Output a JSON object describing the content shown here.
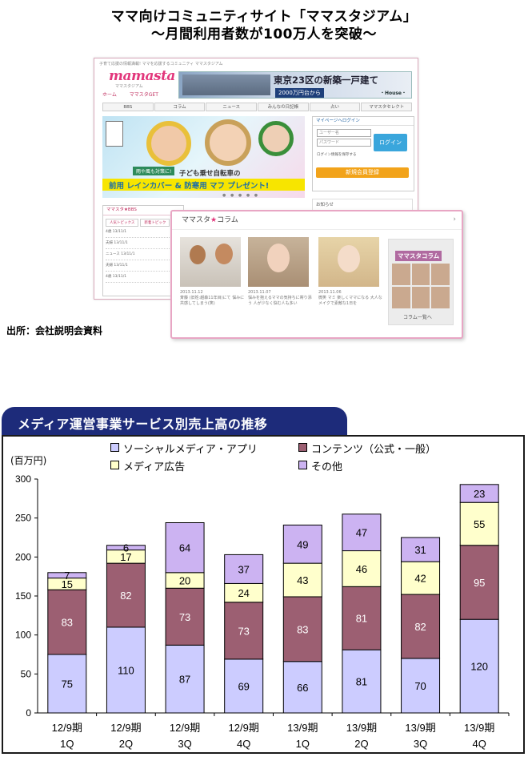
{
  "header": {
    "title_line1": "ママ向けコミュニティサイト「ママスタジアム」",
    "title_line2": "〜月間利用者数が100万人を突破〜"
  },
  "site": {
    "tagline": "子育て応援の情報満載! ママを応援するコミュニティ ママスタジアム",
    "logo": "mamasta",
    "logo_sub": "ママスタジアム",
    "banner_text": "東京23区の新築一戸建て",
    "banner_price": "2000万円台から",
    "banner_brand": "・House・",
    "nav": [
      "ホーム",
      "ママスタGET"
    ],
    "tabs": [
      "BBS",
      "コラム",
      "ニュース",
      "みんなの日記帳",
      "占い",
      "ママスタセレクト"
    ],
    "hero_tag": "雨や風も対策に!",
    "hero_sub": "子ども乗せ自転車の",
    "hero_main": "前用 レインカバー & 防寒用 マフ プレゼント!",
    "login_head": "マイページへログイン",
    "login_id_placeholder": "ユーザー名",
    "login_pw_placeholder": "パスワード",
    "login_button": "ログイン",
    "login_remember": "ログイン情報を保存する",
    "register_button": "新規会員登録",
    "news_head": "お知らせ",
    "bbs_head": "ママスタ★BBS",
    "bbs_tabs": [
      "人気トピックス",
      "新着トピック"
    ],
    "bbs_rows": [
      "4歳  13/11/1",
      "夫婦  13/11/1",
      "ニュース  13/11/1",
      "夫婦  13/11/1",
      "4歳  13/11/1"
    ],
    "column_head_pre": "ママスタ",
    "column_head_post": "コラム",
    "column_items": [
      {
        "date": "2013.11.12",
        "text": "斉藤 (旧姓:越森11年目)にて 悩みに共感してしまう(笑)"
      },
      {
        "date": "2013.11.07",
        "text": "悩みを抱えるママの気持ちに寄り添う 人が少なく悩む人も多い"
      },
      {
        "date": "2013.11.06",
        "text": "微笑 マミ 楽しくママになる 大人なメイクで素敵な1日を"
      }
    ],
    "column_side_title": "ママスタコラム",
    "column_side_link": "コラム一覧へ"
  },
  "source_note": "出所：会社説明会資料",
  "chart_data": {
    "type": "bar",
    "stacked": true,
    "title": "メディア運営事業サービス別売上高の推移",
    "ylabel": "(百万円)",
    "ylim": [
      0,
      300
    ],
    "yticks": [
      0,
      50,
      100,
      150,
      200,
      250,
      300
    ],
    "categories": [
      [
        "12/9期",
        "1Q"
      ],
      [
        "12/9期",
        "2Q"
      ],
      [
        "12/9期",
        "3Q"
      ],
      [
        "12/9期",
        "4Q"
      ],
      [
        "13/9期",
        "1Q"
      ],
      [
        "13/9期",
        "2Q"
      ],
      [
        "13/9期",
        "3Q"
      ],
      [
        "13/9期",
        "4Q"
      ]
    ],
    "series": [
      {
        "name": "ソーシャルメディア・アプリ",
        "color": "#ccccff",
        "values": [
          75,
          110,
          87,
          69,
          66,
          81,
          70,
          120
        ]
      },
      {
        "name": "コンテンツ（公式・一般）",
        "color": "#9c5f72",
        "values": [
          83,
          82,
          73,
          73,
          83,
          81,
          82,
          95
        ]
      },
      {
        "name": "メディア広告",
        "color": "#ffffcc",
        "values": [
          15,
          17,
          20,
          24,
          43,
          46,
          42,
          55
        ]
      },
      {
        "name": "その他",
        "color": "#ccb3f2",
        "values": [
          7,
          6,
          64,
          37,
          49,
          47,
          31,
          23
        ]
      }
    ],
    "legend": "top",
    "grid": false
  }
}
